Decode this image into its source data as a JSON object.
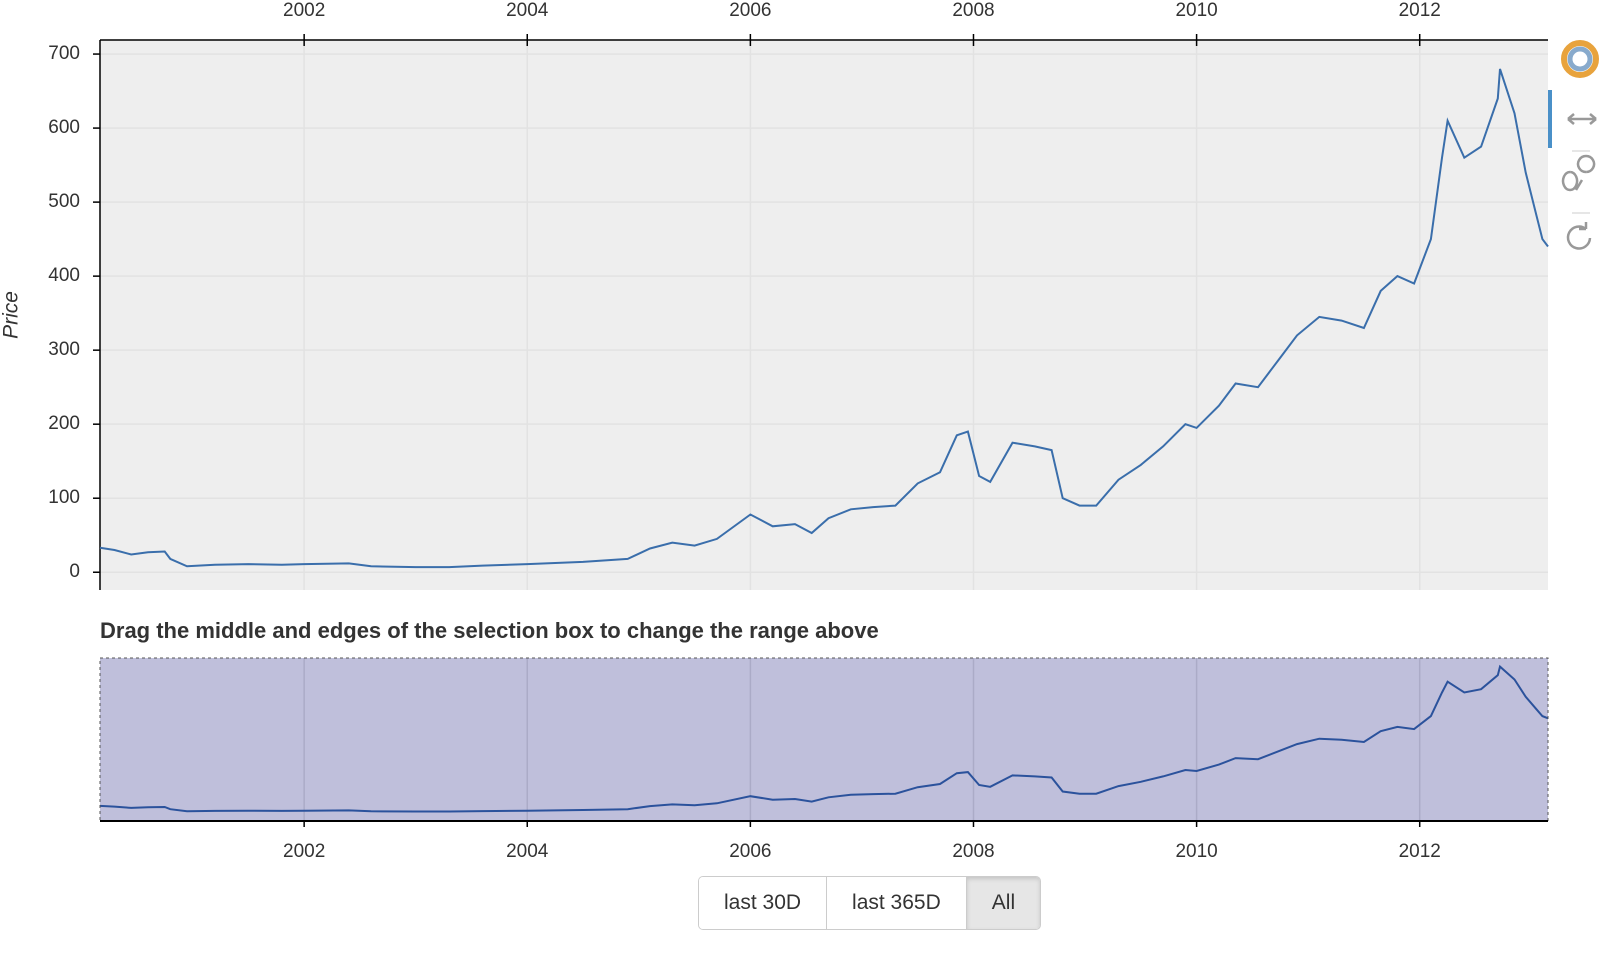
{
  "chart_data": [
    {
      "type": "line",
      "y_label": "Price",
      "grid": true,
      "xlim": [
        2000.17,
        2013.15
      ],
      "xticks": [
        2002,
        2004,
        2006,
        2008,
        2010,
        2012
      ],
      "ylim": [
        -24,
        719
      ],
      "yticks": [
        0,
        100,
        200,
        300,
        400,
        500,
        600,
        700
      ],
      "series": [
        {
          "color": "#3a6eab",
          "x": [
            2000.17,
            2000.3,
            2000.45,
            2000.6,
            2000.75,
            2000.8,
            2000.95,
            2001.2,
            2001.5,
            2001.8,
            2002.0,
            2002.4,
            2002.6,
            2003.0,
            2003.3,
            2003.6,
            2004.0,
            2004.5,
            2004.9,
            2005.1,
            2005.3,
            2005.5,
            2005.7,
            2006.0,
            2006.2,
            2006.4,
            2006.55,
            2006.7,
            2006.9,
            2007.1,
            2007.3,
            2007.5,
            2007.7,
            2007.85,
            2007.95,
            2008.05,
            2008.15,
            2008.35,
            2008.55,
            2008.7,
            2008.8,
            2008.95,
            2009.1,
            2009.3,
            2009.5,
            2009.7,
            2009.9,
            2010.0,
            2010.2,
            2010.35,
            2010.55,
            2010.75,
            2010.9,
            2011.1,
            2011.3,
            2011.5,
            2011.65,
            2011.8,
            2011.95,
            2012.1,
            2012.2,
            2012.25,
            2012.4,
            2012.55,
            2012.7,
            2012.72,
            2012.85,
            2012.95,
            2013.05,
            2013.1,
            2013.15
          ],
          "values": [
            33,
            30,
            24,
            27,
            28,
            18,
            8,
            10,
            11,
            10,
            11,
            12,
            8,
            7,
            7,
            9,
            11,
            14,
            18,
            32,
            40,
            36,
            45,
            78,
            62,
            65,
            53,
            73,
            85,
            88,
            90,
            120,
            135,
            185,
            190,
            130,
            122,
            175,
            170,
            165,
            100,
            90,
            90,
            125,
            145,
            170,
            200,
            195,
            225,
            255,
            250,
            290,
            320,
            345,
            340,
            330,
            380,
            400,
            390,
            450,
            560,
            610,
            560,
            575,
            640,
            680,
            620,
            540,
            480,
            450,
            440
          ]
        }
      ]
    },
    {
      "type": "line",
      "title": "Drag the middle and edges of the selection box to change the range above",
      "xlim": [
        2000.17,
        2013.15
      ],
      "xticks": [
        2002,
        2004,
        2006,
        2008,
        2010,
        2012
      ],
      "ylim": [
        -37,
        720
      ],
      "grid": true
    }
  ],
  "buttons": [
    "last 30D",
    "last 365D",
    "All"
  ],
  "active_button": 2
}
